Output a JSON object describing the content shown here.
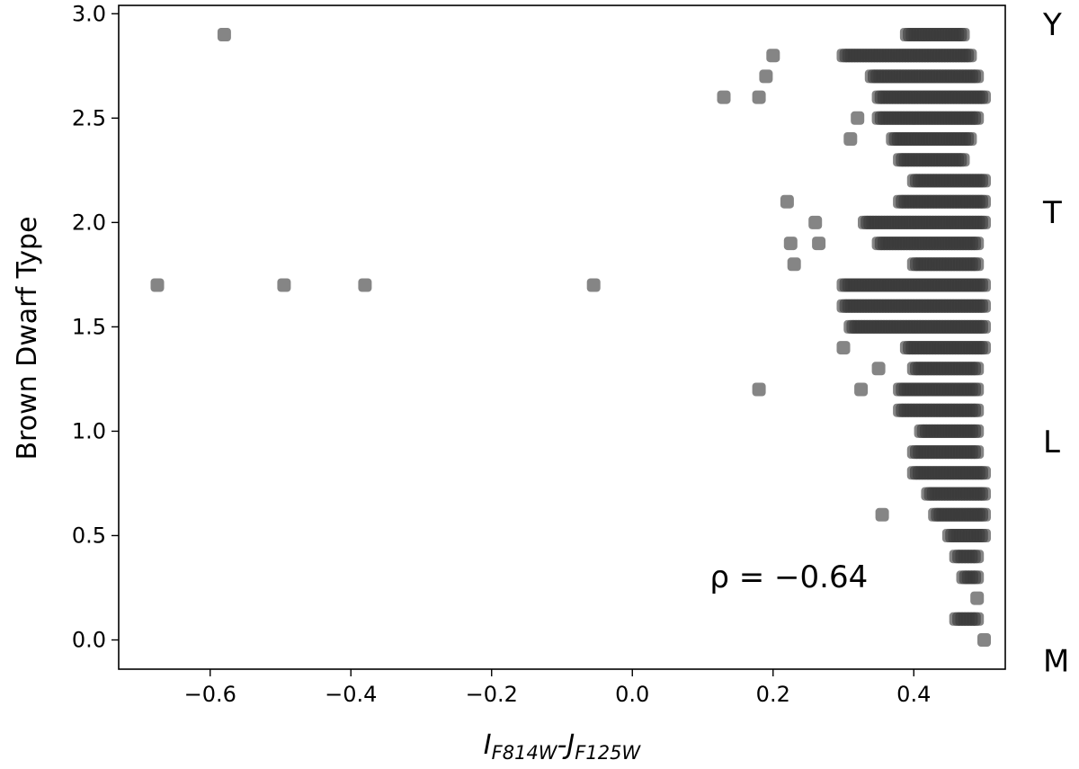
{
  "chart_data": {
    "type": "scatter",
    "title": "",
    "xlabel": {
      "main": "I",
      "sub1": "F814W",
      "sep": "-J",
      "sub2": "F125W"
    },
    "ylabel": "Brown Dwarf Type",
    "xlim": [
      -0.73,
      0.53
    ],
    "ylim": [
      -0.14,
      3.04
    ],
    "xticks": [
      -0.6,
      -0.4,
      -0.2,
      0.0,
      0.2,
      0.4
    ],
    "xtick_labels": [
      "−0.6",
      "−0.4",
      "−0.2",
      "0.0",
      "0.2",
      "0.4"
    ],
    "yticks": [
      0.0,
      0.5,
      1.0,
      1.5,
      2.0,
      2.5,
      3.0
    ],
    "ytick_labels": [
      "0.0",
      "0.5",
      "1.0",
      "1.5",
      "2.0",
      "2.5",
      "3.0"
    ],
    "grid": false,
    "marker_color": "#3a3a3a",
    "annotation": {
      "text": "ρ = −0.64",
      "x": 0.11,
      "y": 0.2
    },
    "right_type_labels": [
      {
        "label": "Y",
        "y": 2.95
      },
      {
        "label": "T",
        "y": 2.05
      },
      {
        "label": "L",
        "y": 0.95
      },
      {
        "label": "M",
        "y": -0.1
      }
    ],
    "outliers": [
      {
        "x": -0.58,
        "y": 2.9
      },
      {
        "x": -0.675,
        "y": 1.7
      },
      {
        "x": -0.495,
        "y": 1.7
      },
      {
        "x": -0.38,
        "y": 1.7
      },
      {
        "x": -0.055,
        "y": 1.7
      },
      {
        "x": 0.13,
        "y": 2.6
      },
      {
        "x": 0.18,
        "y": 2.6
      },
      {
        "x": 0.19,
        "y": 2.7
      },
      {
        "x": 0.2,
        "y": 2.8
      },
      {
        "x": 0.18,
        "y": 1.2
      },
      {
        "x": 0.22,
        "y": 2.1
      },
      {
        "x": 0.225,
        "y": 1.9
      },
      {
        "x": 0.23,
        "y": 1.8
      },
      {
        "x": 0.26,
        "y": 2.0
      },
      {
        "x": 0.265,
        "y": 1.9
      },
      {
        "x": 0.3,
        "y": 1.4
      },
      {
        "x": 0.31,
        "y": 2.4
      },
      {
        "x": 0.32,
        "y": 2.5
      },
      {
        "x": 0.325,
        "y": 1.2
      },
      {
        "x": 0.355,
        "y": 0.6
      },
      {
        "x": 0.35,
        "y": 1.3
      }
    ],
    "rows": [
      {
        "y": 2.9,
        "x_min": 0.39,
        "x_max": 0.47
      },
      {
        "y": 2.8,
        "x_min": 0.3,
        "x_max": 0.48
      },
      {
        "y": 2.7,
        "x_min": 0.34,
        "x_max": 0.49
      },
      {
        "y": 2.6,
        "x_min": 0.35,
        "x_max": 0.5
      },
      {
        "y": 2.5,
        "x_min": 0.35,
        "x_max": 0.49
      },
      {
        "y": 2.4,
        "x_min": 0.37,
        "x_max": 0.48
      },
      {
        "y": 2.3,
        "x_min": 0.38,
        "x_max": 0.47
      },
      {
        "y": 2.2,
        "x_min": 0.4,
        "x_max": 0.5
      },
      {
        "y": 2.1,
        "x_min": 0.38,
        "x_max": 0.5
      },
      {
        "y": 2.0,
        "x_min": 0.33,
        "x_max": 0.5
      },
      {
        "y": 1.9,
        "x_min": 0.35,
        "x_max": 0.49
      },
      {
        "y": 1.8,
        "x_min": 0.4,
        "x_max": 0.49
      },
      {
        "y": 1.7,
        "x_min": 0.3,
        "x_max": 0.5
      },
      {
        "y": 1.6,
        "x_min": 0.3,
        "x_max": 0.5
      },
      {
        "y": 1.5,
        "x_min": 0.31,
        "x_max": 0.5
      },
      {
        "y": 1.4,
        "x_min": 0.39,
        "x_max": 0.5
      },
      {
        "y": 1.3,
        "x_min": 0.4,
        "x_max": 0.49
      },
      {
        "y": 1.2,
        "x_min": 0.38,
        "x_max": 0.49
      },
      {
        "y": 1.1,
        "x_min": 0.38,
        "x_max": 0.49
      },
      {
        "y": 1.0,
        "x_min": 0.41,
        "x_max": 0.49
      },
      {
        "y": 0.9,
        "x_min": 0.4,
        "x_max": 0.49
      },
      {
        "y": 0.8,
        "x_min": 0.4,
        "x_max": 0.5
      },
      {
        "y": 0.7,
        "x_min": 0.42,
        "x_max": 0.5
      },
      {
        "y": 0.6,
        "x_min": 0.43,
        "x_max": 0.5
      },
      {
        "y": 0.5,
        "x_min": 0.45,
        "x_max": 0.5
      },
      {
        "y": 0.4,
        "x_min": 0.46,
        "x_max": 0.49
      },
      {
        "y": 0.3,
        "x_min": 0.47,
        "x_max": 0.49
      },
      {
        "y": 0.1,
        "x_min": 0.46,
        "x_max": 0.49
      },
      {
        "y": 0.2,
        "x_min": 0.49,
        "x_max": 0.49
      },
      {
        "y": 0.0,
        "x_min": 0.5,
        "x_max": 0.5
      }
    ]
  }
}
